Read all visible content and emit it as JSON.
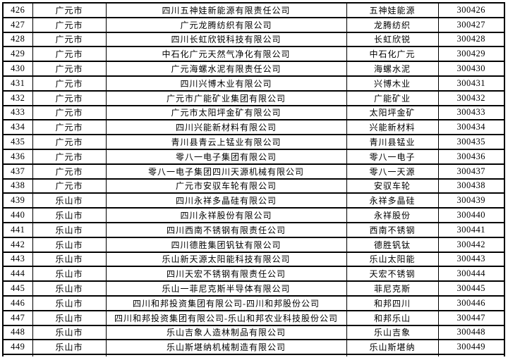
{
  "table": {
    "rows": [
      {
        "no": "426",
        "city": "广元市",
        "company": "四川五神娃新能源有限责任公司",
        "short_name": "五神娃能源",
        "code": "300426"
      },
      {
        "no": "427",
        "city": "广元市",
        "company": "广元龙腾纺织有限公司",
        "short_name": "龙腾纺织",
        "code": "300427"
      },
      {
        "no": "428",
        "city": "广元市",
        "company": "四川长虹欣锐科技有限公司",
        "short_name": "长虹欣锐",
        "code": "300428"
      },
      {
        "no": "429",
        "city": "广元市",
        "company": "中石化广元天然气净化有限公司",
        "short_name": "中石化广元",
        "code": "300429"
      },
      {
        "no": "430",
        "city": "广元市",
        "company": "广元海螺水泥有限责任公司",
        "short_name": "海螺水泥",
        "code": "300430"
      },
      {
        "no": "431",
        "city": "广元市",
        "company": "四川兴博木业有限公司",
        "short_name": "兴博木业",
        "code": "300431"
      },
      {
        "no": "432",
        "city": "广元市",
        "company": "广元市广能矿业集团有限公司",
        "short_name": "广能矿业",
        "code": "300432"
      },
      {
        "no": "433",
        "city": "广元市",
        "company": "广元市太阳坪金矿有限公司",
        "short_name": "太阳坪金矿",
        "code": "300433"
      },
      {
        "no": "434",
        "city": "广元市",
        "company": "四川兴能新材料有限公司",
        "short_name": "兴能新材料",
        "code": "300434"
      },
      {
        "no": "435",
        "city": "广元市",
        "company": "青川县青云上锰业有限公司",
        "short_name": "青川县锰业",
        "code": "300435"
      },
      {
        "no": "436",
        "city": "广元市",
        "company": "零八一电子集团有限公司",
        "short_name": "零八一电子",
        "code": "300436"
      },
      {
        "no": "437",
        "city": "广元市",
        "company": "零八一电子集团四川天源机械有限公司",
        "short_name": "零八一天源",
        "code": "300437"
      },
      {
        "no": "438",
        "city": "广元市",
        "company": "广元市安驭车轮有限公司",
        "short_name": "安驭车轮",
        "code": "300438"
      },
      {
        "no": "439",
        "city": "乐山市",
        "company": "四川永祥多晶硅有限公司",
        "short_name": "永祥多晶硅",
        "code": "300439"
      },
      {
        "no": "440",
        "city": "乐山市",
        "company": "四川永祥股份有限公司",
        "short_name": "永祥股份",
        "code": "300440"
      },
      {
        "no": "441",
        "city": "乐山市",
        "company": "四川西南不锈钢有限责任公司",
        "short_name": "西南不锈钢",
        "code": "300441"
      },
      {
        "no": "442",
        "city": "乐山市",
        "company": "四川德胜集团钒钛有限公司",
        "short_name": "德胜钒钛",
        "code": "300442"
      },
      {
        "no": "443",
        "city": "乐山市",
        "company": "乐山新天源太阳能科技有限公司",
        "short_name": "乐山太阳能",
        "code": "300443"
      },
      {
        "no": "444",
        "city": "乐山市",
        "company": "四川天宏不锈钢有限责任公司",
        "short_name": "天宏不锈钢",
        "code": "300444"
      },
      {
        "no": "445",
        "city": "乐山市",
        "company": "乐山一菲尼克斯半导体有限公司",
        "short_name": "菲尼克斯",
        "code": "300445"
      },
      {
        "no": "446",
        "city": "乐山市",
        "company": "四川和邦投资集团有限公司-四川和邦股份公司",
        "short_name": "和邦四川",
        "code": "300446"
      },
      {
        "no": "447",
        "city": "乐山市",
        "company": "四川和邦投资集团有限公司-乐山和邦农业科技股份公司",
        "short_name": "和邦乐山",
        "code": "300447"
      },
      {
        "no": "448",
        "city": "乐山市",
        "company": "乐山吉象人造林制品有限公司",
        "short_name": "乐山吉象",
        "code": "300448"
      },
      {
        "no": "449",
        "city": "乐山市",
        "company": "乐山斯堪纳机械制造有限公司",
        "short_name": "乐山斯堪纳",
        "code": "300449"
      }
    ]
  }
}
